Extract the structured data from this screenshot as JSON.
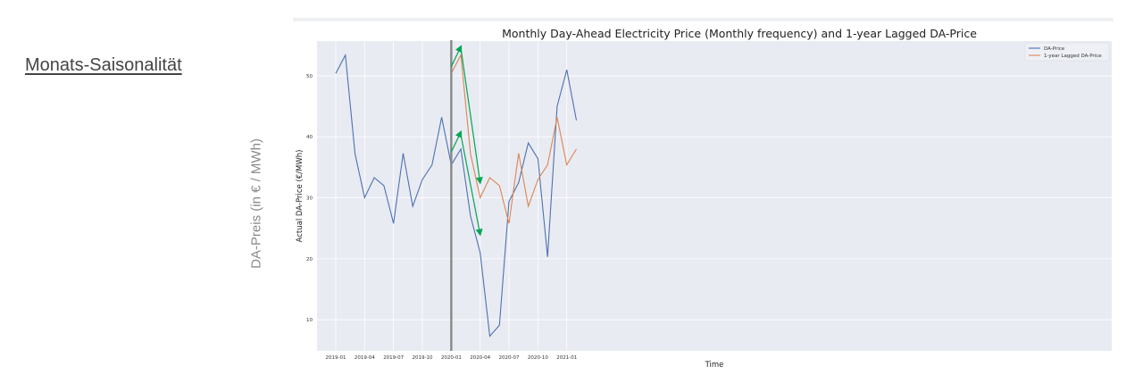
{
  "slide": {
    "heading": "Monats-Saisonalität",
    "ylabel": "DA-Preis (in € / MWh)"
  },
  "chart_data": {
    "type": "line",
    "title": "Monthly Day-Ahead Electricity Price (Monthly frequency) and 1-year Lagged DA-Price",
    "xlabel": "Time",
    "ylabel": "Actual DA-Price (€/MWh)",
    "ylim": [
      4.9,
      55.7
    ],
    "grid": true,
    "legend_position": "top-right",
    "x_ticks": [
      "2019-01",
      "2019-04",
      "2019-07",
      "2019-10",
      "2020-01",
      "2020-04",
      "2020-07",
      "2020-10",
      "2021-01"
    ],
    "y_ticks": [
      10,
      20,
      30,
      40,
      50
    ],
    "x": [
      "2019-01",
      "2019-02",
      "2019-03",
      "2019-04",
      "2019-05",
      "2019-06",
      "2019-07",
      "2019-08",
      "2019-09",
      "2019-10",
      "2019-11",
      "2019-12",
      "2020-01",
      "2020-02",
      "2020-03",
      "2020-04",
      "2020-05",
      "2020-06",
      "2020-07",
      "2020-08",
      "2020-09",
      "2020-10",
      "2020-11",
      "2020-12",
      "2021-01",
      "2021-02"
    ],
    "series": [
      {
        "name": "DA-Price",
        "color": "#4c72b0",
        "values": [
          50.4,
          53.4,
          37.2,
          30.0,
          33.3,
          32.0,
          25.8,
          37.3,
          28.6,
          33.0,
          35.4,
          43.2,
          35.4,
          38.0,
          27.0,
          21.0,
          7.3,
          9.1,
          29.4,
          32.5,
          39.0,
          36.4,
          20.3,
          45.0,
          51.0,
          42.7
        ]
      },
      {
        "name": "1-year Lagged DA-Price",
        "color": "#dd8452",
        "values": [
          null,
          null,
          null,
          null,
          null,
          null,
          null,
          null,
          null,
          null,
          null,
          null,
          50.4,
          53.4,
          37.2,
          30.0,
          33.3,
          32.0,
          25.8,
          37.3,
          28.6,
          33.0,
          35.4,
          43.2,
          35.4,
          38.0
        ]
      }
    ],
    "annotations": {
      "vertical_line_at": "2020-01",
      "vertical_line_color": "#888888",
      "arrow_color": "#00a650",
      "arrows": [
        {
          "from": [
            "2020-01",
            51.5
          ],
          "to": [
            "2020-02",
            54.8
          ]
        },
        {
          "from": [
            "2020-02",
            54.5
          ],
          "to": [
            "2020-04",
            32.5
          ]
        },
        {
          "from": [
            "2020-01",
            37.5
          ],
          "to": [
            "2020-02",
            40.8
          ]
        },
        {
          "from": [
            "2020-02",
            40.3
          ],
          "to": [
            "2020-04",
            24.0
          ]
        }
      ]
    },
    "style": {
      "background": "#e9ebf3",
      "grid_color": "#ffffff"
    }
  }
}
